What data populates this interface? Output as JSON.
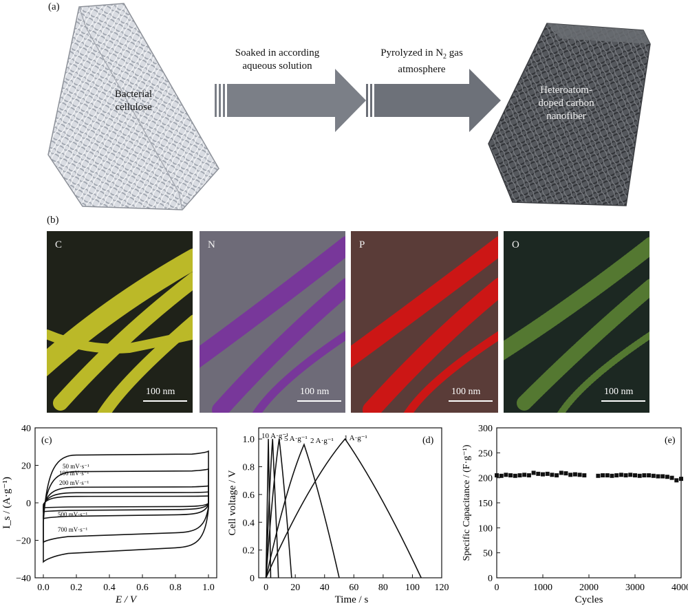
{
  "panel_a": {
    "label": "(a)",
    "left_block_label": "Bacterial cellulose",
    "step1_text": [
      "Soaked in according",
      "aqueous solution"
    ],
    "step2_text_line1_prefix": "Pyrolyzed in N",
    "step2_text_line1_sub": "2",
    "step2_text_line1_suffix": " gas",
    "step2_text_line2": "atmosphere",
    "right_block_label": [
      "Heteroatom-",
      "doped carbon",
      "nanofiber"
    ]
  },
  "panel_b": {
    "label": "(b)",
    "maps": [
      {
        "element": "C",
        "scale": "100 nm",
        "bg": "#1f2219",
        "fiber": "#c9c62a"
      },
      {
        "element": "N",
        "scale": "100 nm",
        "bg": "#6e6b78",
        "fiber": "#7a2fa0"
      },
      {
        "element": "P",
        "scale": "100 nm",
        "bg": "#5a3c38",
        "fiber": "#e01010"
      },
      {
        "element": "O",
        "scale": "100 nm",
        "bg": "#1c2822",
        "fiber": "#8cc840"
      }
    ]
  },
  "chart_data": [
    {
      "type": "line",
      "panel": "(c)",
      "xlabel": "E / V",
      "ylabel": "I_s / (A·g⁻¹)",
      "xlim": [
        -0.05,
        1.05
      ],
      "ylim": [
        -40,
        40
      ],
      "xticks": [
        "0.0",
        "0.2",
        "0.4",
        "0.6",
        "0.8",
        "1.0"
      ],
      "yticks": [
        "40",
        "20",
        "0",
        "−20",
        "−40"
      ],
      "series": [
        {
          "name": "50 mV·s⁻¹",
          "upper": 3.5,
          "lower": -2.5
        },
        {
          "name": "100 mV·s⁻¹",
          "upper": 5.5,
          "lower": -4.5
        },
        {
          "name": "200 mV·s⁻¹",
          "upper": 8.5,
          "lower": -8
        },
        {
          "name": "500 mV·s⁻¹",
          "upper": 17,
          "lower": -20
        },
        {
          "name": "700 mV·s⁻¹",
          "upper": 26,
          "lower": -30
        }
      ],
      "legend_labels": [
        "50 mV·s⁻¹",
        "100 mV·s⁻¹",
        "200 mV·s⁻¹",
        "500 mV·s⁻¹",
        "700 mV·s⁻¹"
      ]
    },
    {
      "type": "line",
      "panel": "(d)",
      "xlabel": "Time / s",
      "ylabel": "Cell voltage / V",
      "xlim": [
        -5,
        120
      ],
      "ylim": [
        0,
        1.08
      ],
      "xticks": [
        "0",
        "20",
        "40",
        "60",
        "80",
        "100",
        "120"
      ],
      "yticks": [
        "0",
        "0.2",
        "0.4",
        "0.6",
        "0.8",
        "1.0"
      ],
      "series": [
        {
          "name": "10 A·g⁻¹",
          "charge_end": 1.6,
          "discharge_end": 3.2,
          "peak": 1.0
        },
        {
          "name": "5 A·g⁻¹",
          "charge_end": 4.5,
          "discharge_end": 8.5,
          "peak": 1.0
        },
        {
          "name": "",
          "charge_end": 9,
          "discharge_end": 17.5,
          "peak": 1.0
        },
        {
          "name": "2 A·g⁻¹",
          "charge_end": 26,
          "discharge_end": 50,
          "peak": 0.96
        },
        {
          "name": "1 A·g⁻¹",
          "charge_end": 54,
          "discharge_end": 106,
          "peak": 1.0
        }
      ],
      "peak_labels": [
        "10 A·g⁻¹",
        "5 A·g⁻¹",
        "2 A·g⁻¹",
        "1 A·g⁻¹"
      ]
    },
    {
      "type": "scatter",
      "panel": "(e)",
      "xlabel": "Cycles",
      "ylabel": "Specific Capacitance / (F·g⁻¹)",
      "xlim": [
        0,
        4000
      ],
      "ylim": [
        0,
        300
      ],
      "xticks": [
        "0",
        "1000",
        "2000",
        "3000",
        "4000"
      ],
      "yticks": [
        "300",
        "250",
        "200",
        "150",
        "100",
        "50",
        "0"
      ],
      "x": [
        0,
        100,
        200,
        300,
        400,
        500,
        600,
        700,
        800,
        900,
        1000,
        1100,
        1200,
        1300,
        1400,
        1500,
        1600,
        1700,
        1800,
        1900,
        2200,
        2300,
        2400,
        2500,
        2600,
        2700,
        2800,
        2900,
        3000,
        3100,
        3200,
        3300,
        3400,
        3500,
        3600,
        3700,
        3800,
        3900,
        4000
      ],
      "y": [
        205,
        204,
        206,
        205,
        204,
        205,
        206,
        205,
        210,
        208,
        207,
        208,
        206,
        205,
        210,
        209,
        206,
        207,
        206,
        205,
        204,
        205,
        205,
        204,
        205,
        206,
        205,
        206,
        205,
        204,
        205,
        205,
        204,
        203,
        203,
        202,
        200,
        195,
        198
      ]
    }
  ]
}
